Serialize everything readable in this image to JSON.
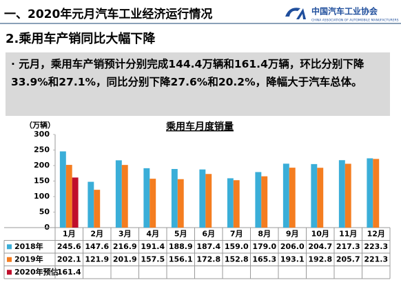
{
  "header": {
    "title": "一、2020年元月汽车工业经济运行情况",
    "logo_name": "中国汽车工业协会",
    "logo_subtitle": "CHINA ASSOCIATION OF AUTOMOBILE MANUFACTURERS"
  },
  "subtitle": "2.乘用车产销同比大幅下降",
  "summary": "元月，乘用车产销预计分别完成144.4万辆和161.4万辆，环比分别下降33.9%和27.1%，同比分别下降27.6%和20.2%，降幅大于汽车总体。",
  "chart_data": {
    "type": "bar",
    "title": "乘用车月度销量",
    "y_label": "（万辆）",
    "categories": [
      "1月",
      "2月",
      "3月",
      "4月",
      "5月",
      "6月",
      "7月",
      "8月",
      "9月",
      "10月",
      "11月",
      "12月"
    ],
    "series": [
      {
        "name": "2018年",
        "color": "#3aaed8",
        "values": [
          245.6,
          147.6,
          216.9,
          191.4,
          188.9,
          187.4,
          159.0,
          179.0,
          206.0,
          204.7,
          217.3,
          223.3
        ],
        "value_labels": [
          "245.6",
          "147.6",
          "216.9",
          "191.4",
          "188.9",
          "187.4",
          "159.0",
          "179.0",
          "206.0",
          "204.7",
          "217.3",
          "223.3"
        ]
      },
      {
        "name": "2019年",
        "color": "#f47d20",
        "values": [
          202.1,
          121.9,
          201.9,
          157.5,
          156.1,
          172.8,
          152.8,
          165.3,
          193.1,
          192.8,
          205.7,
          221.3
        ],
        "value_labels": [
          "202.1",
          "121.9",
          "201.9",
          "157.5",
          "156.1",
          "172.8",
          "152.8",
          "165.3",
          "193.1",
          "192.8",
          "205.7",
          "221.3"
        ]
      },
      {
        "name": "2020年预估",
        "color": "#c00f2c",
        "values": [
          161.4,
          null,
          null,
          null,
          null,
          null,
          null,
          null,
          null,
          null,
          null,
          null
        ]
      }
    ],
    "ylim": [
      0,
      300
    ],
    "yticks": [
      0,
      50,
      100,
      150,
      200,
      250,
      300
    ],
    "grid": false
  }
}
